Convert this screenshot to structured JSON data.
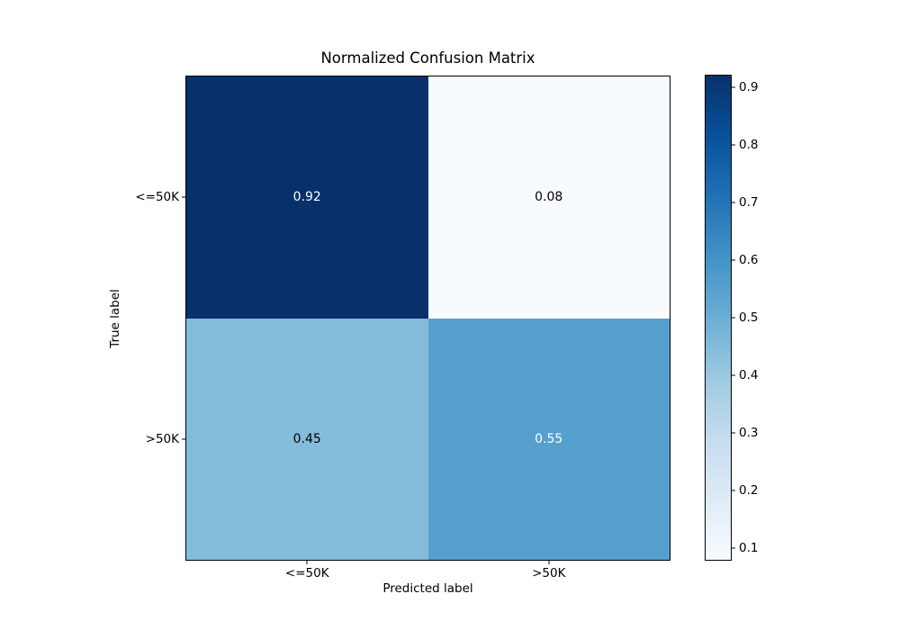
{
  "figure": {
    "background": "#ffffff"
  },
  "chart_data": {
    "type": "heatmap",
    "title": "Normalized Confusion Matrix",
    "xlabel": "Predicted label",
    "ylabel": "True label",
    "x_categories": [
      "<=50K",
      ">50K"
    ],
    "y_categories": [
      "<=50K",
      ">50K"
    ],
    "matrix": [
      [
        0.92,
        0.08
      ],
      [
        0.45,
        0.55
      ]
    ],
    "cell_labels": [
      [
        "0.92",
        "0.08"
      ],
      [
        "0.45",
        "0.55"
      ]
    ],
    "cell_colors": [
      [
        "#08306b",
        "#f7fbff"
      ],
      [
        "#84bcdb",
        "#56a0ce"
      ]
    ],
    "cell_text_colors": [
      [
        "#ffffff",
        "#000000"
      ],
      [
        "#000000",
        "#ffffff"
      ]
    ],
    "colormap": "Blues",
    "grid": false,
    "colorbar": {
      "vmin": 0.08,
      "vmax": 0.92,
      "ticks": [
        {
          "value": 0.9,
          "label": "0.9"
        },
        {
          "value": 0.8,
          "label": "0.8"
        },
        {
          "value": 0.7,
          "label": "0.7"
        },
        {
          "value": 0.6,
          "label": "0.6"
        },
        {
          "value": 0.5,
          "label": "0.5"
        },
        {
          "value": 0.4,
          "label": "0.4"
        },
        {
          "value": 0.3,
          "label": "0.3"
        },
        {
          "value": 0.2,
          "label": "0.2"
        },
        {
          "value": 0.1,
          "label": "0.1"
        }
      ],
      "gradient_stops": [
        "#f7fbff",
        "#deebf7",
        "#c6dbef",
        "#9ecae1",
        "#6baed6",
        "#4292c6",
        "#2171b5",
        "#08519c",
        "#08306b"
      ]
    }
  }
}
